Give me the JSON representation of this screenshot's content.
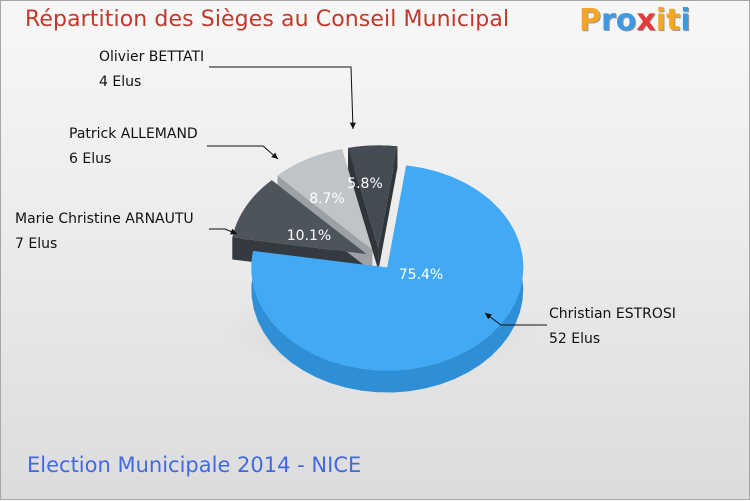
{
  "title": "Répartition des Sièges au Conseil Municipal",
  "subtitle": "Election Municipale 2014 - NICE",
  "logo": {
    "letters": [
      "P",
      "r",
      "o",
      "x",
      "i",
      "t",
      "i"
    ],
    "colors": [
      "#f5a623",
      "#3b9ae1",
      "#3b9ae1",
      "#e23b3b",
      "#f5a623",
      "#f5a623",
      "#3b9ae1"
    ]
  },
  "chart_data": {
    "type": "pie",
    "title": "Répartition des Sièges au Conseil Municipal",
    "slices": [
      {
        "name": "Christian ESTROSI",
        "seats_label": "52 Elus",
        "value": 52,
        "percent_label": "75.4%",
        "color": "#42a9f5",
        "side": "#2f8fd6"
      },
      {
        "name": "Marie Christine ARNAUTU",
        "seats_label": "7 Elus",
        "value": 7,
        "percent_label": "10.1%",
        "color": "#4d545c",
        "side": "#353a40"
      },
      {
        "name": "Patrick ALLEMAND",
        "seats_label": "6 Elus",
        "value": 6,
        "percent_label": "8.7%",
        "color": "#bfc4c9",
        "side": "#9ca1a6"
      },
      {
        "name": "Olivier BETTATI",
        "seats_label": "4 Elus",
        "value": 4,
        "percent_label": "5.8%",
        "color": "#454b52",
        "side": "#30353a"
      }
    ]
  }
}
